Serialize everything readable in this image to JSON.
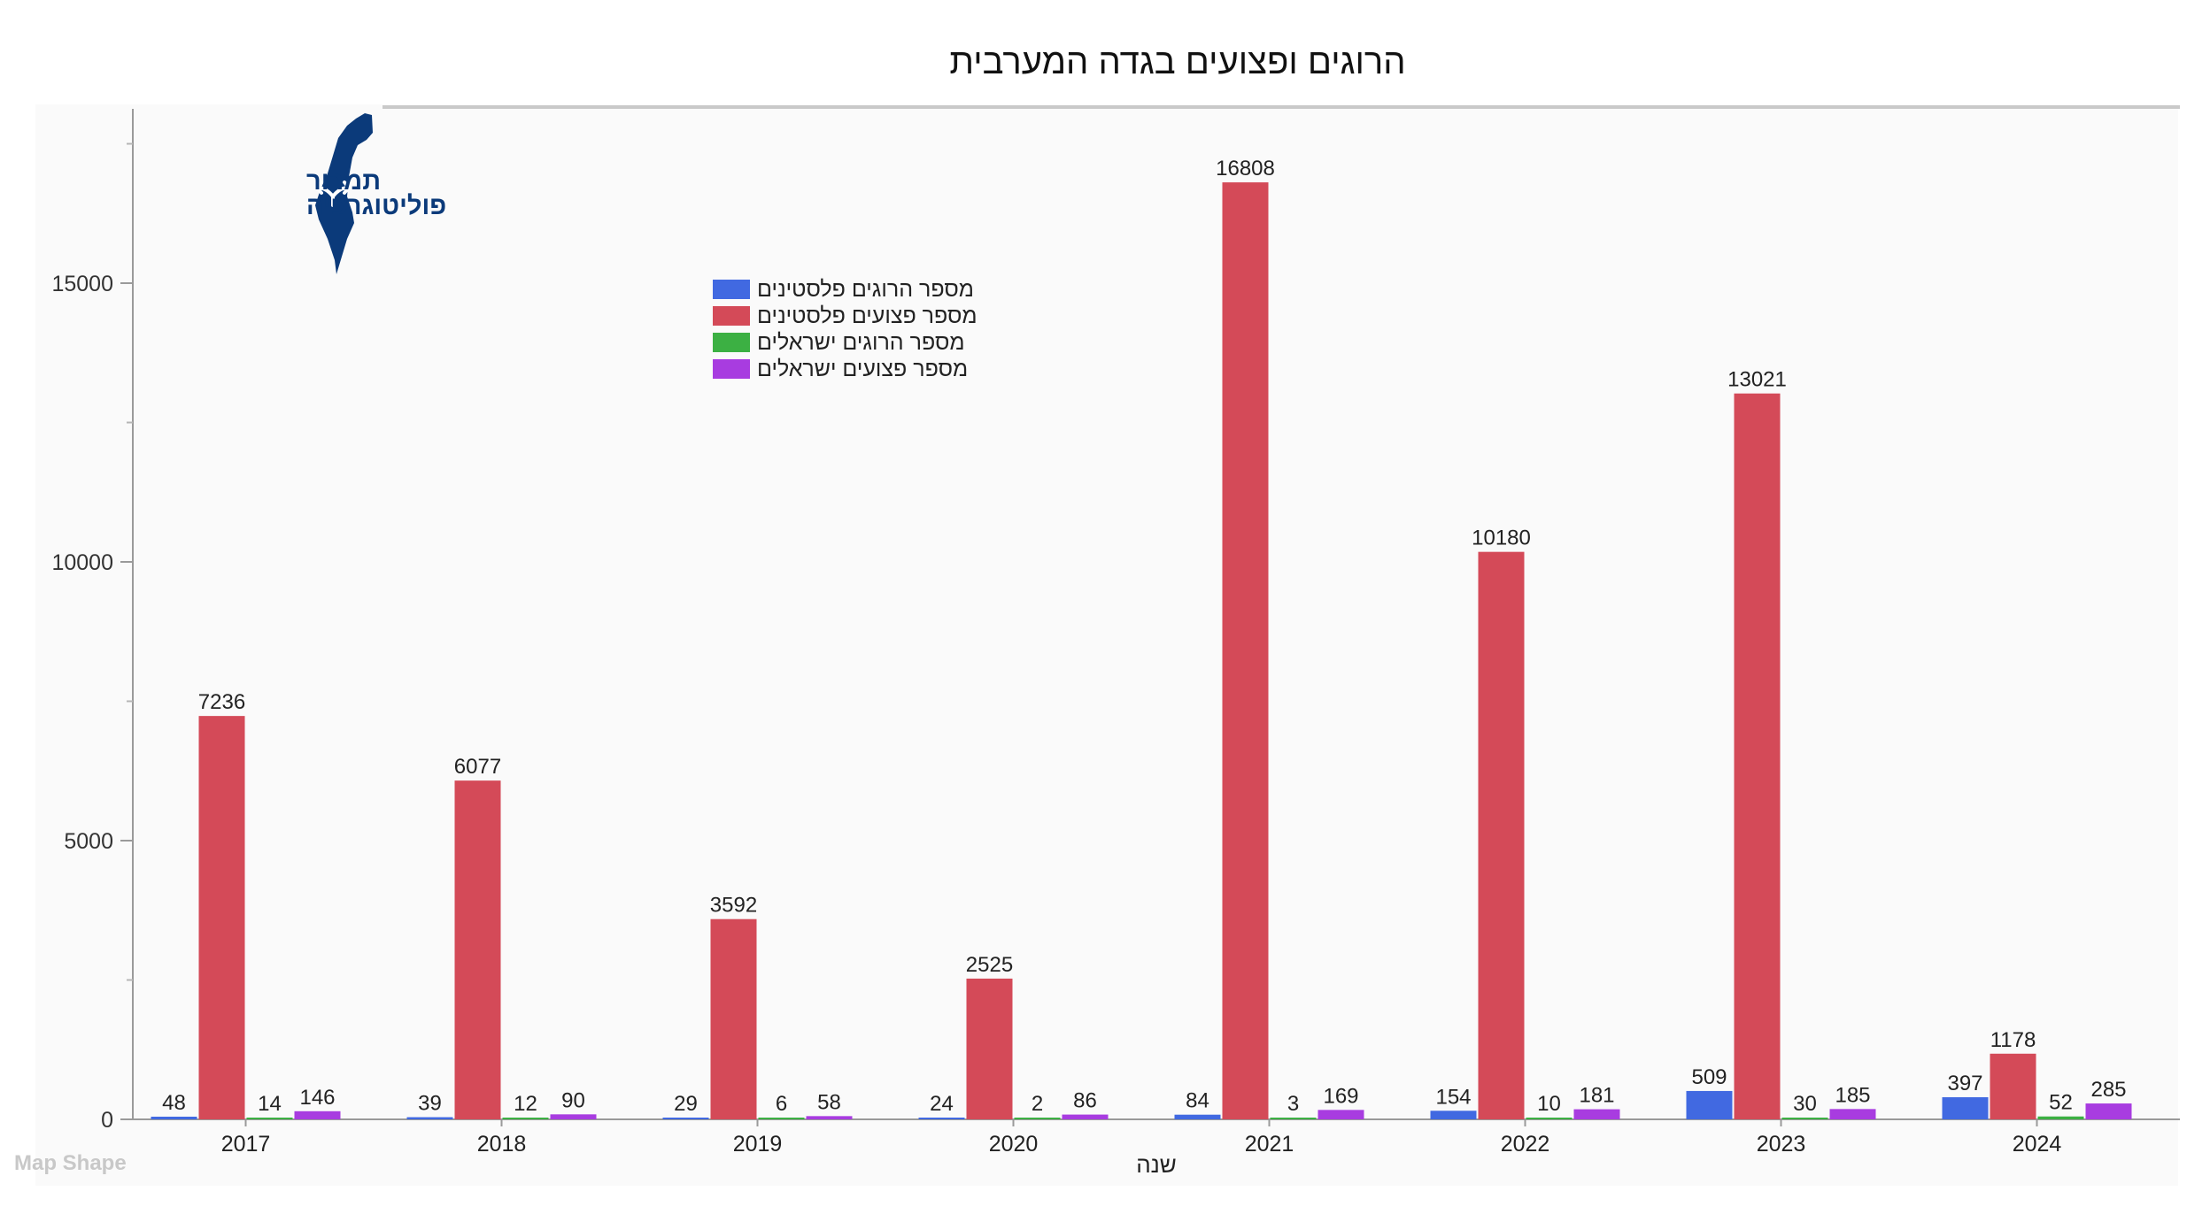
{
  "chart_data": {
    "type": "bar",
    "title": "הרוגים ופצועים בגדה המערבית",
    "xlabel": "שנה",
    "ylabel": "",
    "categories": [
      "2017",
      "2018",
      "2019",
      "2020",
      "2021",
      "2022",
      "2023",
      "2024"
    ],
    "series": [
      {
        "name": "מספר הרוגים פלסטינים",
        "color": "#4169e1",
        "values": [
          48,
          39,
          29,
          24,
          84,
          154,
          509,
          397
        ]
      },
      {
        "name": "מספר פצועים פלסטינים",
        "color": "#d44a58",
        "values": [
          7236,
          6077,
          3592,
          2525,
          16808,
          10180,
          13021,
          1178
        ]
      },
      {
        "name": "מספר הרוגים ישראלים",
        "color": "#3cb043",
        "values": [
          14,
          12,
          6,
          2,
          3,
          10,
          30,
          52
        ]
      },
      {
        "name": "מספר פצועים ישראלים",
        "color": "#a83ce0",
        "values": [
          146,
          90,
          58,
          86,
          169,
          181,
          185,
          285
        ]
      }
    ],
    "ylim": [
      0,
      17500
    ],
    "yticks": [
      0,
      5000,
      10000,
      15000
    ],
    "grid": false,
    "legend_position": "top-left"
  },
  "logo": {
    "line1": "תמרור",
    "line2": "פוליטוגרפיה"
  },
  "watermark": "Map Shape"
}
